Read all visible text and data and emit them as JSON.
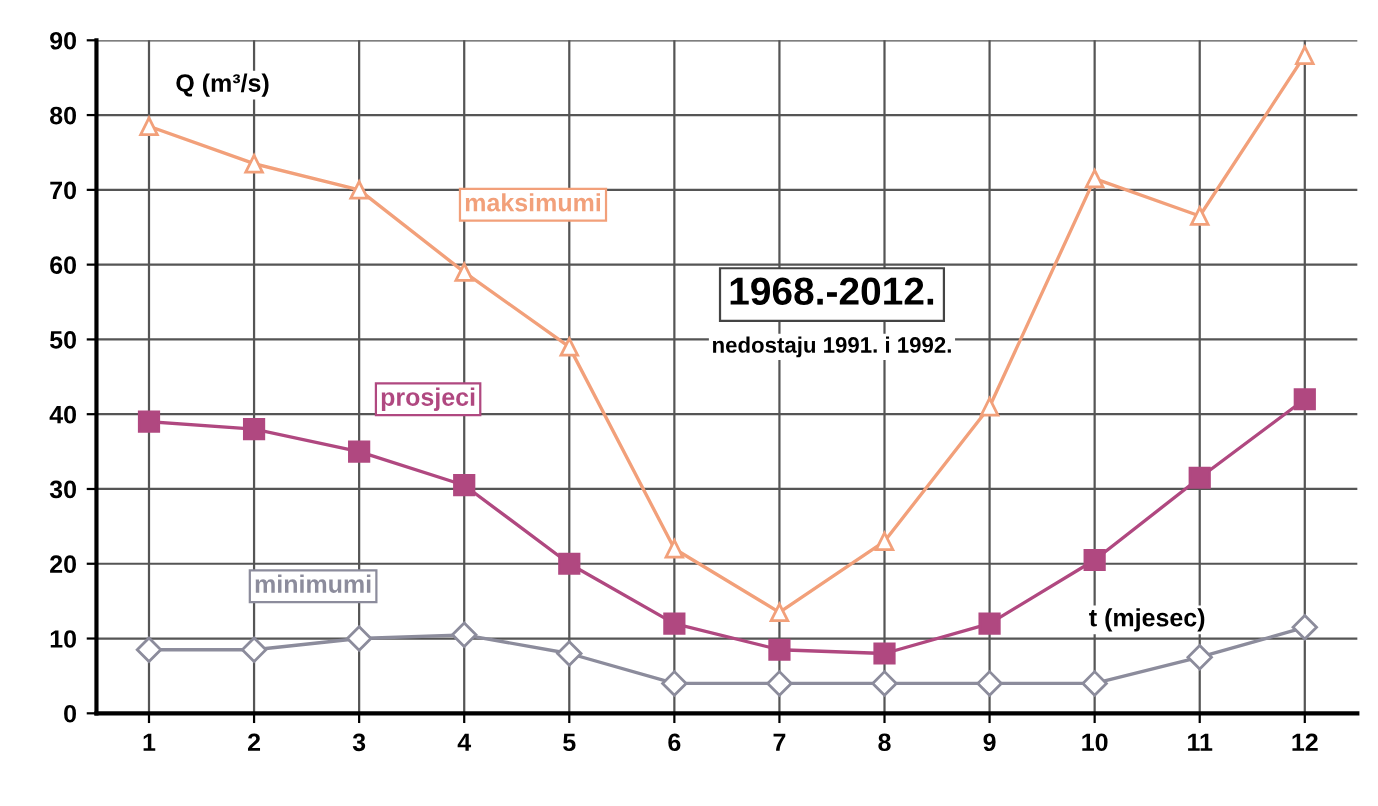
{
  "chart_data": {
    "type": "line",
    "title": "1968.-2012.",
    "subtitle": "nedostaju 1991. i 1992.",
    "xlabel": "t (mjesec)",
    "ylabel": "Q (m³/s)",
    "categories": [
      "1",
      "2",
      "3",
      "4",
      "5",
      "6",
      "7",
      "8",
      "9",
      "10",
      "11",
      "12"
    ],
    "series": [
      {
        "name": "maksimumi",
        "color": "#f2a07a",
        "marker": "triangle",
        "values": [
          78.5,
          73.5,
          70,
          59,
          49,
          22,
          13.5,
          23,
          41,
          71.5,
          66.5,
          88
        ]
      },
      {
        "name": "prosjeci",
        "color": "#b04880",
        "marker": "square",
        "values": [
          39,
          38,
          35,
          30.5,
          20,
          12,
          8.5,
          8,
          12,
          20.5,
          31.5,
          42
        ]
      },
      {
        "name": "minimumi",
        "color": "#8c8c9c",
        "marker": "diamond",
        "values": [
          8.5,
          8.5,
          10,
          10.5,
          8,
          4,
          4,
          4,
          4,
          4,
          7.5,
          11.5
        ]
      }
    ],
    "ylim": [
      0,
      90
    ],
    "yticks": [
      0,
      10,
      20,
      30,
      40,
      50,
      60,
      70,
      80,
      90
    ],
    "grid": true,
    "legend": false,
    "line_style": "solid"
  }
}
